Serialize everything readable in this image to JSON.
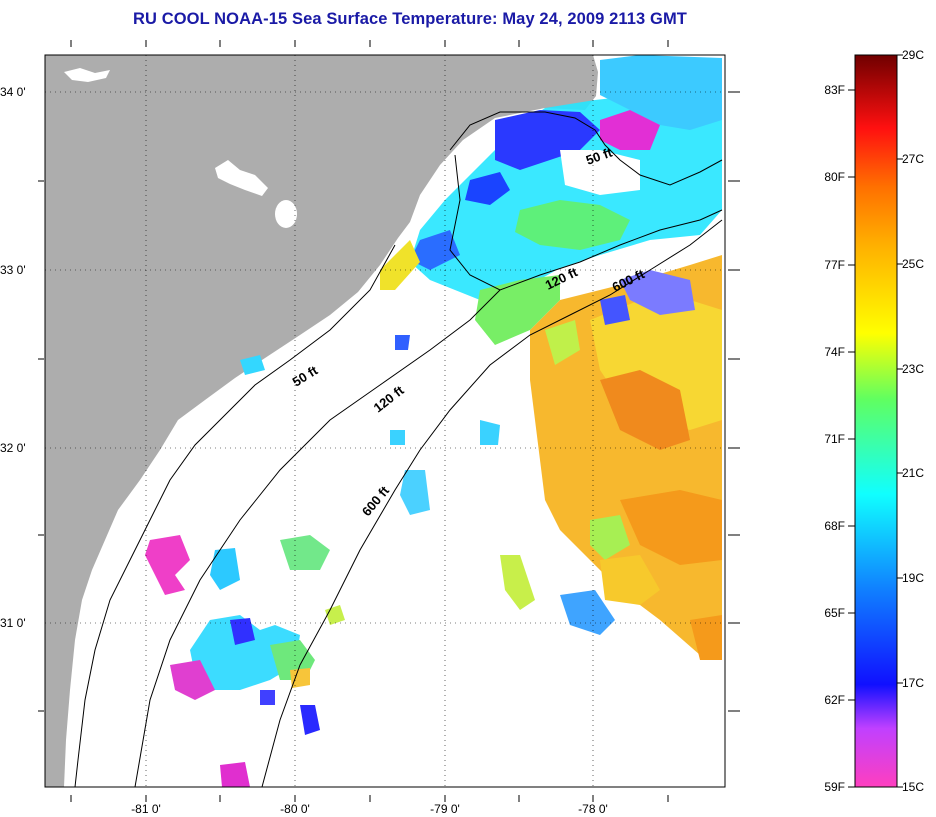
{
  "title": "RU COOL  NOAA-15  Sea Surface Temperature:  May 24, 2009 2113 GMT",
  "map": {
    "lat_labels": [
      "34 0'",
      "33 0'",
      "32 0'",
      "31 0'"
    ],
    "lon_labels": [
      "-81 0'",
      "-80 0'",
      "-79 0'",
      "-78 0'"
    ],
    "contours": {
      "c50": "50 ft",
      "c120": "120 ft",
      "c600": "600 ft"
    },
    "colors": {
      "land": "#adadad",
      "ocean": "#ffffff"
    }
  },
  "colorbar": {
    "fahrenheit_labels": [
      "83F",
      "80F",
      "77F",
      "74F",
      "71F",
      "68F",
      "65F",
      "62F",
      "59F"
    ],
    "celsius_labels": [
      "29C",
      "27C",
      "25C",
      "23C",
      "21C",
      "19C",
      "17C",
      "15C"
    ]
  }
}
